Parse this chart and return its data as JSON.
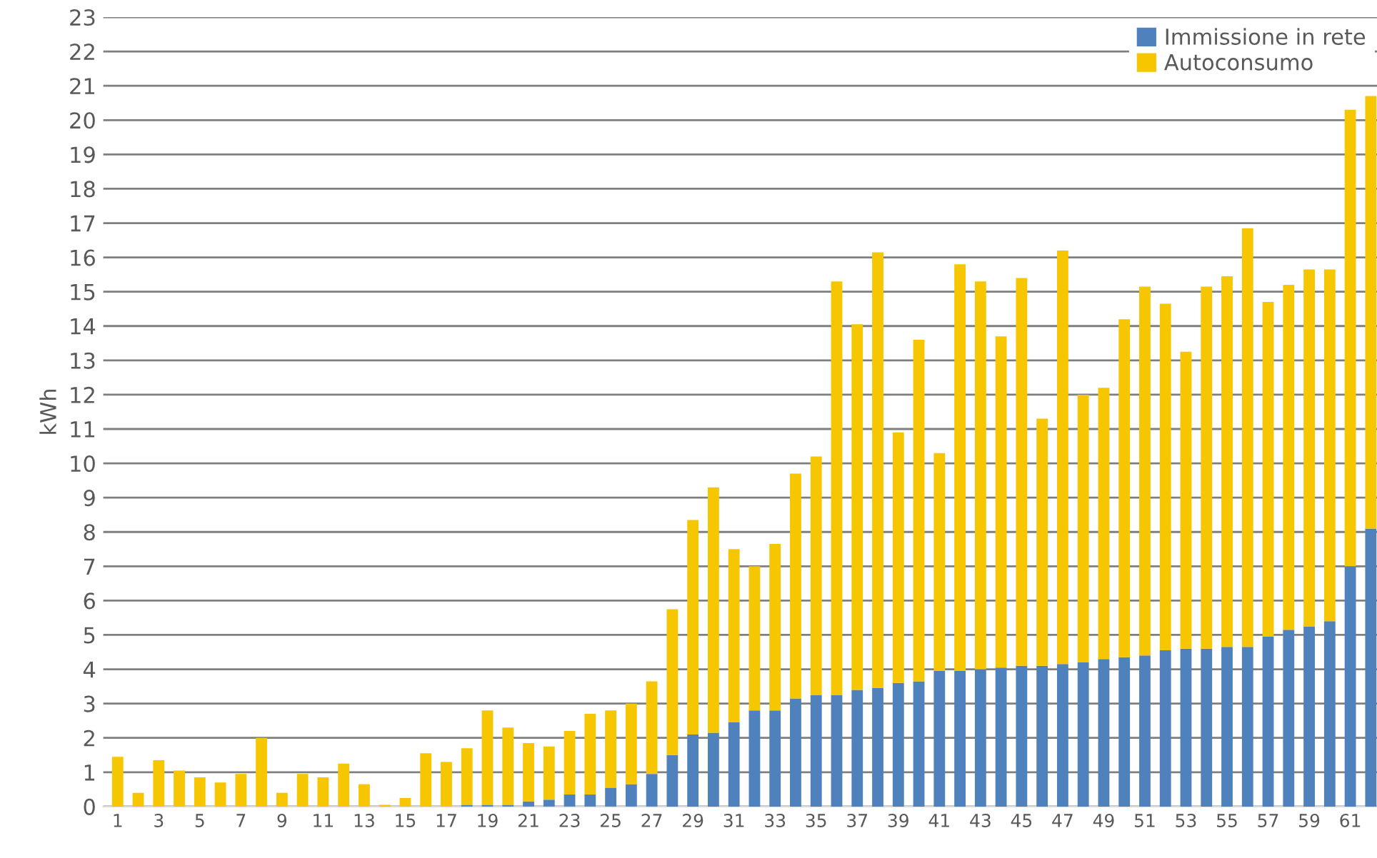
{
  "chart_data": {
    "type": "bar",
    "ylabel": "kWh",
    "stacked": true,
    "grid": "y",
    "legend": "top right",
    "categories": [
      "1",
      null,
      "3",
      null,
      "5",
      null,
      "7",
      null,
      "9",
      null,
      "11",
      null,
      "13",
      null,
      "15",
      null,
      "17",
      null,
      "19",
      null,
      "21",
      null,
      "23",
      null,
      "25",
      null,
      "27",
      null,
      "29",
      null,
      "31",
      null,
      "33",
      null,
      "35",
      null,
      "37",
      null,
      "39",
      null,
      "41",
      null,
      "43",
      null,
      "45",
      null,
      "47",
      null,
      "49",
      null,
      "51",
      null,
      "53",
      null,
      "55",
      null,
      "57",
      null,
      "59",
      null,
      "61",
      null
    ],
    "series": [
      {
        "name": "Immissione in rete",
        "color": "#4f81bd",
        "values": [
          0,
          0,
          0,
          0,
          0,
          0,
          0,
          0,
          0,
          0,
          0,
          0,
          0,
          0,
          0,
          0,
          0,
          0.05,
          0.05,
          0.05,
          0.15,
          0.2,
          0.35,
          0.35,
          0.55,
          0.65,
          0.95,
          1.5,
          2.1,
          2.15,
          2.45,
          2.8,
          2.8,
          3.15,
          3.25,
          3.25,
          3.4,
          3.45,
          3.6,
          3.65,
          3.95,
          3.95,
          4.0,
          4.05,
          4.1,
          4.1,
          4.15,
          4.2,
          4.3,
          4.35,
          4.4,
          4.55,
          4.6,
          4.6,
          4.65,
          4.65,
          4.95,
          5.15,
          5.25,
          5.4,
          7.0,
          8.1
        ]
      },
      {
        "name": "Autoconsumo",
        "color": "#f6c600",
        "values": [
          1.45,
          0.4,
          1.35,
          1.05,
          0.85,
          0.7,
          0.95,
          2.0,
          0.4,
          0.95,
          0.85,
          1.25,
          0.65,
          0.05,
          0.25,
          1.55,
          1.3,
          1.65,
          2.75,
          2.25,
          1.7,
          1.55,
          1.85,
          2.35,
          2.25,
          2.35,
          2.7,
          4.25,
          6.25,
          7.15,
          5.05,
          4.2,
          4.85,
          6.55,
          6.95,
          12.05,
          10.65,
          12.7,
          7.3,
          9.95,
          6.35,
          11.85,
          11.3,
          9.65,
          11.3,
          7.2,
          12.05,
          7.8,
          7.9,
          9.85,
          10.75,
          10.1,
          8.65,
          10.55,
          10.8,
          12.2,
          9.75,
          10.05,
          10.4,
          10.25,
          13.3,
          12.6
        ]
      }
    ],
    "ylim": [
      0,
      23
    ],
    "yticks": [
      0,
      1,
      2,
      3,
      4,
      5,
      6,
      7,
      8,
      9,
      10,
      11,
      12,
      13,
      14,
      15,
      16,
      17,
      18,
      19,
      20,
      21,
      22,
      23
    ]
  }
}
